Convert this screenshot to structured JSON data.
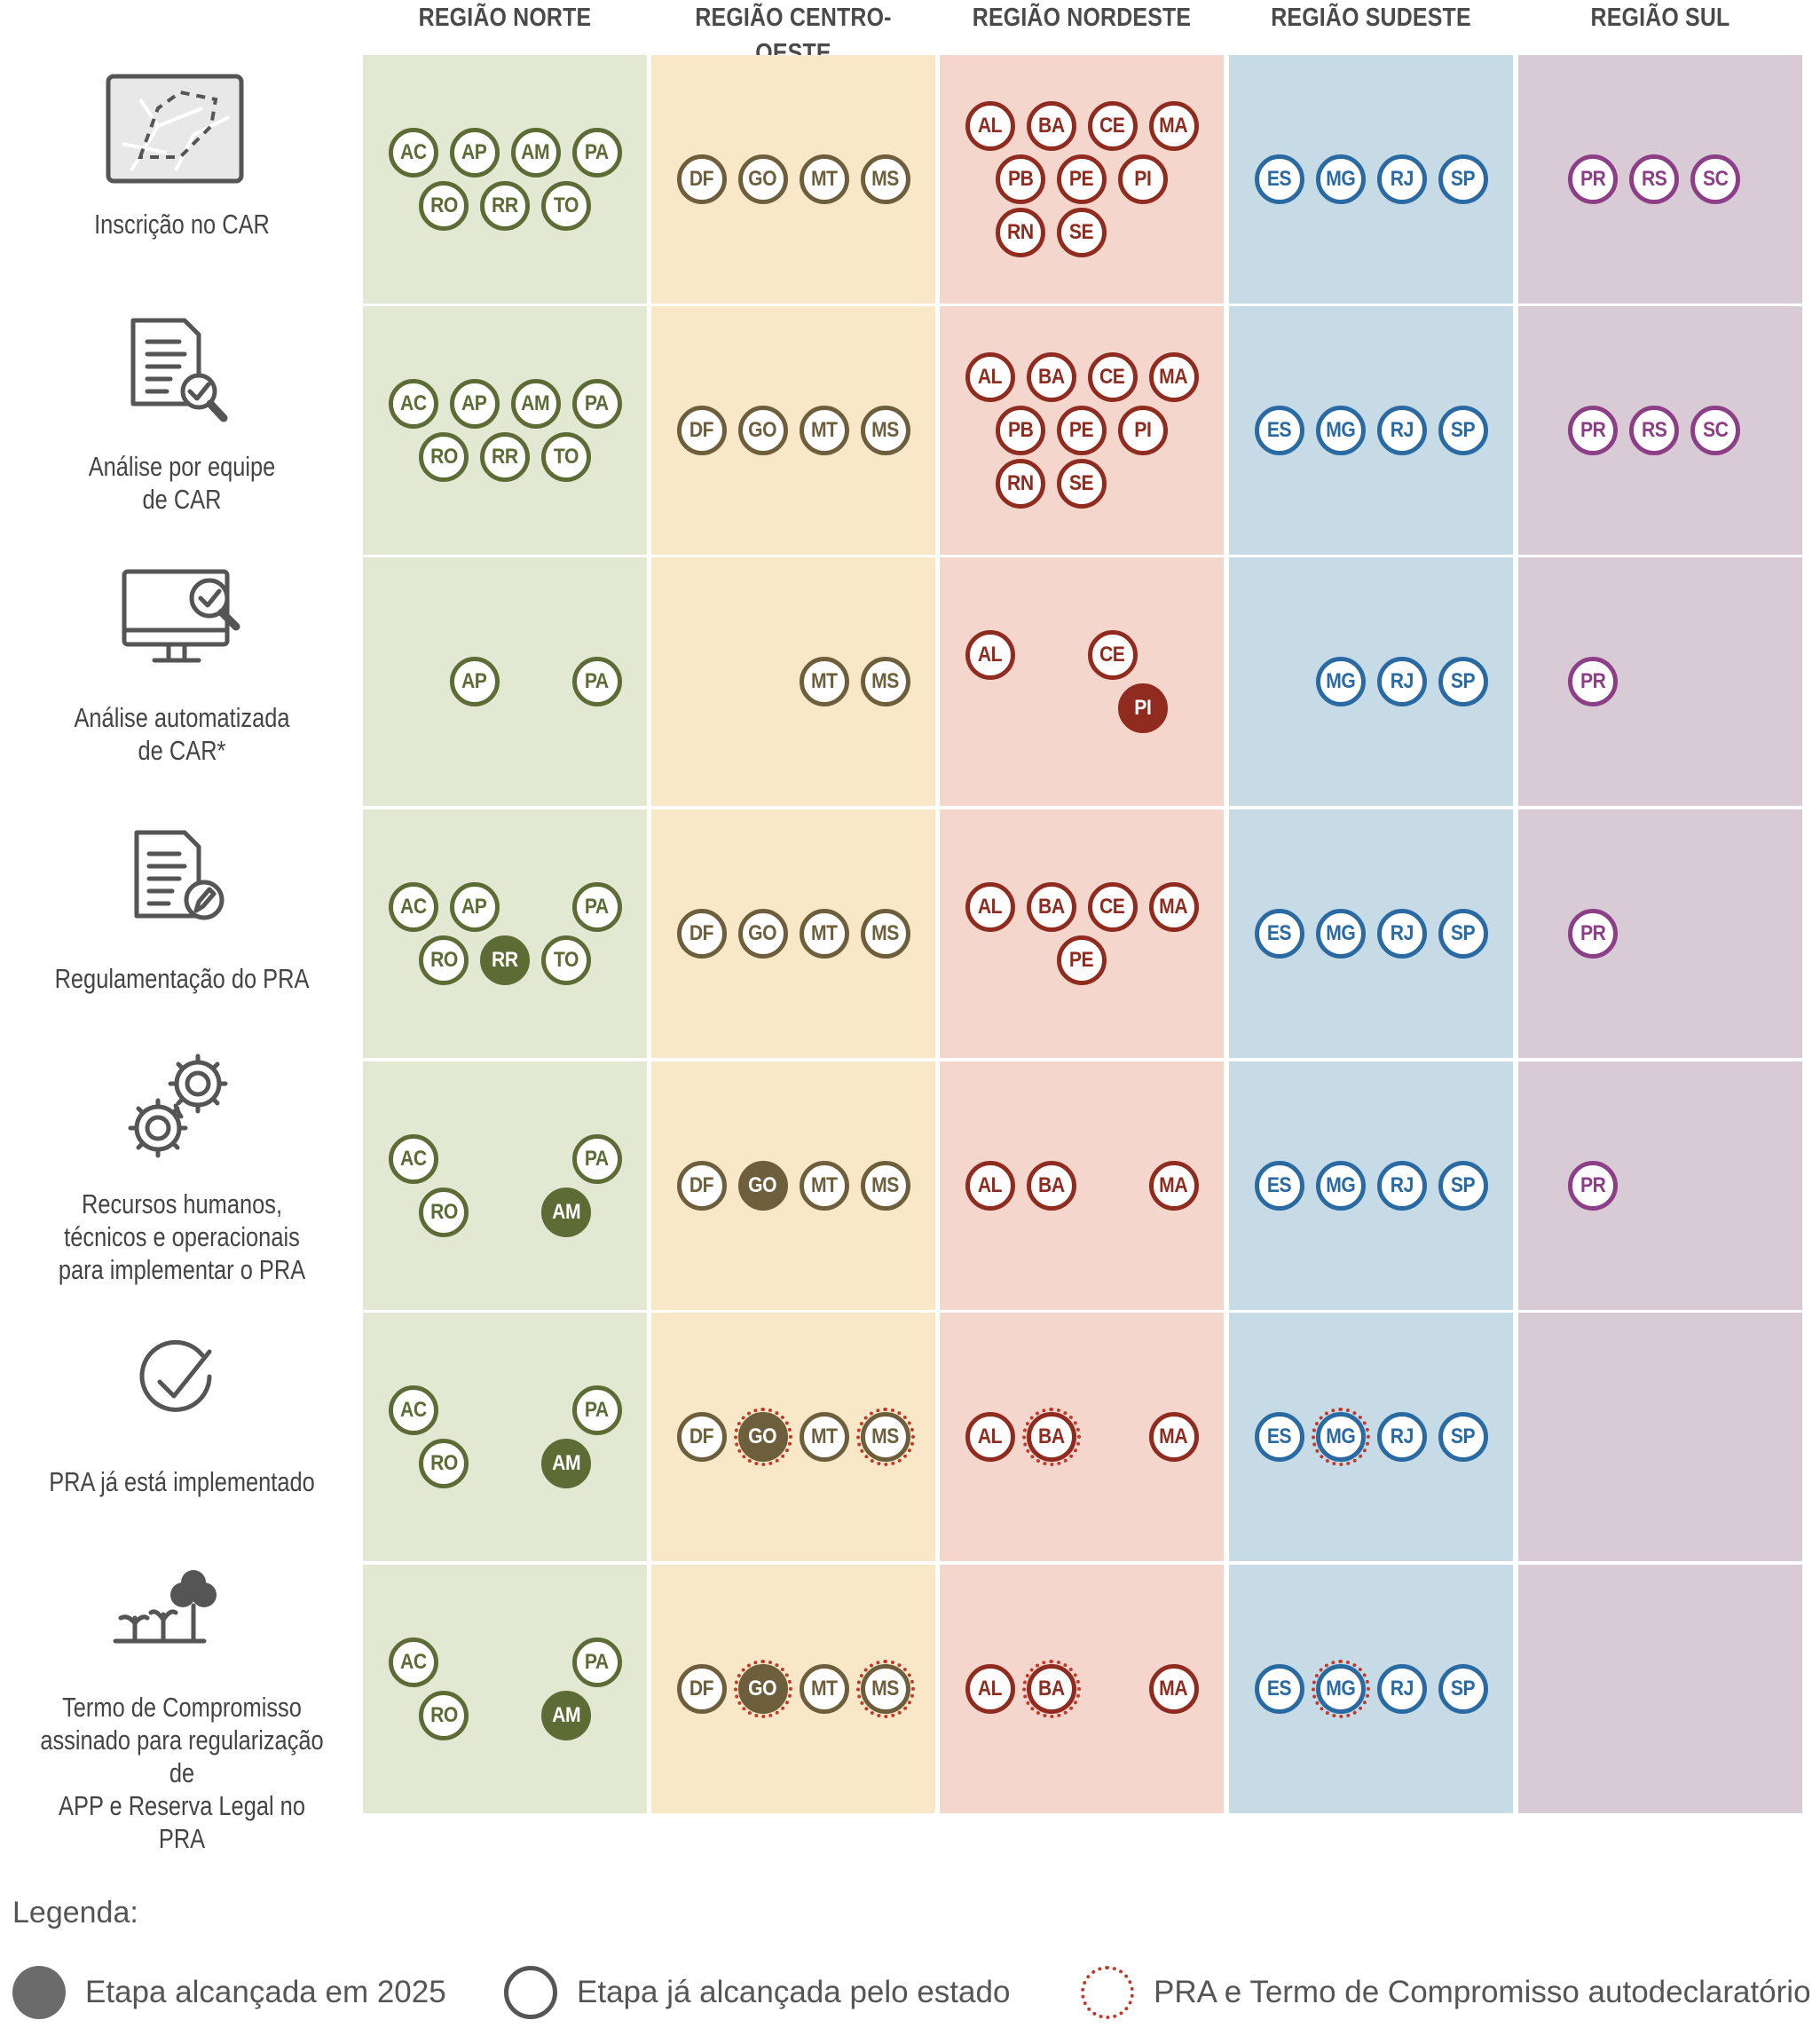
{
  "regions": [
    {
      "key": "norte",
      "label": "REGIÃO NORTE",
      "fill": "#e3e8d3",
      "color": "#5d6b35"
    },
    {
      "key": "centro_oeste",
      "label": "REGIÃO CENTRO-OESTE",
      "fill": "#f8e8c8",
      "color": "#6e5f3c"
    },
    {
      "key": "nordeste",
      "label": "REGIÃO NORDESTE",
      "fill": "#f5d6cd",
      "color": "#8f2c1f"
    },
    {
      "key": "sudeste",
      "label": "REGIÃO SUDESTE",
      "fill": "#c7dbe7",
      "color": "#2a6aa3"
    },
    {
      "key": "sul",
      "label": "REGIÃO SUL",
      "fill": "#d8cbd5",
      "color": "#8c3f86"
    }
  ],
  "stages": [
    {
      "label_lines": [
        "Inscrição no CAR"
      ],
      "icon": "map-document-icon",
      "cells": {
        "norte": [
          [
            {
              "s": "AC"
            },
            {
              "s": "AP"
            },
            {
              "s": "AM"
            },
            {
              "s": "PA"
            }
          ],
          [
            {
              "s": "RO"
            },
            {
              "s": "RR"
            },
            {
              "s": "TO"
            }
          ]
        ],
        "centro_oeste": [
          [
            {
              "s": "DF"
            },
            {
              "s": "GO"
            },
            {
              "s": "MT"
            },
            {
              "s": "MS"
            }
          ]
        ],
        "nordeste": [
          [
            {
              "s": "AL"
            },
            {
              "s": "BA"
            },
            {
              "s": "CE"
            },
            {
              "s": "MA"
            }
          ],
          [
            {
              "s": "PB"
            },
            {
              "s": "PE"
            },
            {
              "s": "PI"
            }
          ],
          [
            {
              "s": "RN"
            },
            {
              "s": "SE"
            }
          ]
        ],
        "sudeste": [
          [
            {
              "s": "ES"
            },
            {
              "s": "MG"
            },
            {
              "s": "RJ"
            },
            {
              "s": "SP"
            }
          ]
        ],
        "sul": [
          [
            {
              "s": "PR"
            },
            {
              "s": "RS"
            },
            {
              "s": "SC"
            }
          ]
        ]
      }
    },
    {
      "label_lines": [
        "Análise por equipe",
        "de CAR"
      ],
      "icon": "document-check-icon",
      "cells": {
        "norte": [
          [
            {
              "s": "AC"
            },
            {
              "s": "AP"
            },
            {
              "s": "AM"
            },
            {
              "s": "PA"
            }
          ],
          [
            {
              "s": "RO"
            },
            {
              "s": "RR"
            },
            {
              "s": "TO"
            }
          ]
        ],
        "centro_oeste": [
          [
            {
              "s": "DF"
            },
            {
              "s": "GO"
            },
            {
              "s": "MT"
            },
            {
              "s": "MS"
            }
          ]
        ],
        "nordeste": [
          [
            {
              "s": "AL"
            },
            {
              "s": "BA"
            },
            {
              "s": "CE"
            },
            {
              "s": "MA"
            }
          ],
          [
            {
              "s": "PB"
            },
            {
              "s": "PE"
            },
            {
              "s": "PI"
            }
          ],
          [
            {
              "s": "RN"
            },
            {
              "s": "SE"
            }
          ]
        ],
        "sudeste": [
          [
            {
              "s": "ES"
            },
            {
              "s": "MG"
            },
            {
              "s": "RJ"
            },
            {
              "s": "SP"
            }
          ]
        ],
        "sul": [
          [
            {
              "s": "PR"
            },
            {
              "s": "RS"
            },
            {
              "s": "SC"
            }
          ]
        ]
      }
    },
    {
      "label_lines": [
        "Análise automatizada",
        "de CAR*"
      ],
      "icon": "monitor-check-icon",
      "cells": {
        "norte": [
          [
            null,
            {
              "s": "AP"
            },
            null,
            {
              "s": "PA"
            }
          ]
        ],
        "centro_oeste": [
          [
            null,
            null,
            {
              "s": "MT"
            },
            {
              "s": "MS"
            }
          ]
        ],
        "nordeste": [
          [
            {
              "s": "AL"
            },
            null,
            {
              "s": "CE"
            },
            null
          ],
          [
            null,
            null,
            {
              "s": "PI",
              "filled": true
            }
          ]
        ],
        "sudeste": [
          [
            null,
            {
              "s": "MG"
            },
            {
              "s": "RJ"
            },
            {
              "s": "SP"
            }
          ]
        ],
        "sul": [
          [
            {
              "s": "PR"
            }
          ]
        ]
      }
    },
    {
      "label_lines": [
        "Regulamentação do PRA"
      ],
      "icon": "document-pen-icon",
      "cells": {
        "norte": [
          [
            {
              "s": "AC"
            },
            {
              "s": "AP"
            },
            null,
            {
              "s": "PA"
            }
          ],
          [
            {
              "s": "RO"
            },
            {
              "s": "RR",
              "filled": true
            },
            {
              "s": "TO"
            }
          ]
        ],
        "centro_oeste": [
          [
            {
              "s": "DF"
            },
            {
              "s": "GO"
            },
            {
              "s": "MT"
            },
            {
              "s": "MS"
            }
          ]
        ],
        "nordeste": [
          [
            {
              "s": "AL"
            },
            {
              "s": "BA"
            },
            {
              "s": "CE"
            },
            {
              "s": "MA"
            }
          ],
          [
            null,
            {
              "s": "PE"
            }
          ]
        ],
        "sudeste": [
          [
            {
              "s": "ES"
            },
            {
              "s": "MG"
            },
            {
              "s": "RJ"
            },
            {
              "s": "SP"
            }
          ]
        ],
        "sul": [
          [
            {
              "s": "PR"
            }
          ]
        ]
      }
    },
    {
      "label_lines": [
        "Recursos humanos,",
        "técnicos e operacionais",
        "para implementar o PRA"
      ],
      "icon": "gears-icon",
      "cells": {
        "norte": [
          [
            {
              "s": "AC"
            },
            null,
            null,
            {
              "s": "PA"
            }
          ],
          [
            {
              "s": "RO"
            },
            null,
            {
              "s": "AM",
              "filled": true
            }
          ]
        ],
        "centro_oeste": [
          [
            {
              "s": "DF"
            },
            {
              "s": "GO",
              "filled": true
            },
            {
              "s": "MT"
            },
            {
              "s": "MS"
            }
          ]
        ],
        "nordeste": [
          [
            {
              "s": "AL"
            },
            {
              "s": "BA"
            },
            null,
            {
              "s": "MA"
            }
          ]
        ],
        "sudeste": [
          [
            {
              "s": "ES"
            },
            {
              "s": "MG"
            },
            {
              "s": "RJ"
            },
            {
              "s": "SP"
            }
          ]
        ],
        "sul": [
          [
            {
              "s": "PR"
            }
          ]
        ]
      }
    },
    {
      "label_lines": [
        "PRA já está implementado"
      ],
      "icon": "check-circle-icon",
      "cells": {
        "norte": [
          [
            {
              "s": "AC"
            },
            null,
            null,
            {
              "s": "PA"
            }
          ],
          [
            {
              "s": "RO"
            },
            null,
            {
              "s": "AM",
              "filled": true
            }
          ]
        ],
        "centro_oeste": [
          [
            {
              "s": "DF"
            },
            {
              "s": "GO",
              "filled": true,
              "dotted": true
            },
            {
              "s": "MT"
            },
            {
              "s": "MS",
              "dotted": true
            }
          ]
        ],
        "nordeste": [
          [
            {
              "s": "AL"
            },
            {
              "s": "BA",
              "dotted": true
            },
            null,
            {
              "s": "MA"
            }
          ]
        ],
        "sudeste": [
          [
            {
              "s": "ES"
            },
            {
              "s": "MG",
              "dotted": true
            },
            {
              "s": "RJ"
            },
            {
              "s": "SP"
            }
          ]
        ],
        "sul": []
      }
    },
    {
      "label_lines": [
        "Termo de Compromisso",
        "assinado para regularização de",
        "APP e Reserva Legal no PRA"
      ],
      "icon": "tree-seedlings-icon",
      "cells": {
        "norte": [
          [
            {
              "s": "AC"
            },
            null,
            null,
            {
              "s": "PA"
            }
          ],
          [
            {
              "s": "RO"
            },
            null,
            {
              "s": "AM",
              "filled": true
            }
          ]
        ],
        "centro_oeste": [
          [
            {
              "s": "DF"
            },
            {
              "s": "GO",
              "filled": true,
              "dotted": true
            },
            {
              "s": "MT"
            },
            {
              "s": "MS",
              "dotted": true
            }
          ]
        ],
        "nordeste": [
          [
            {
              "s": "AL"
            },
            {
              "s": "BA",
              "dotted": true
            },
            null,
            {
              "s": "MA"
            }
          ]
        ],
        "sudeste": [
          [
            {
              "s": "ES"
            },
            {
              "s": "MG",
              "dotted": true
            },
            {
              "s": "RJ"
            },
            {
              "s": "SP"
            }
          ]
        ],
        "sul": []
      }
    }
  ],
  "legend": {
    "title": "Legenda:",
    "items": [
      {
        "key": "filled",
        "label": "Etapa alcançada em 2025"
      },
      {
        "key": "outline",
        "label": "Etapa já alcançada pelo estado"
      },
      {
        "key": "dotted",
        "label": "PRA e Termo de Compromisso autodeclaratório"
      }
    ],
    "filled_color": "#6b6b6b",
    "outline_color": "#555555",
    "dotted_color": "#c0392b"
  }
}
